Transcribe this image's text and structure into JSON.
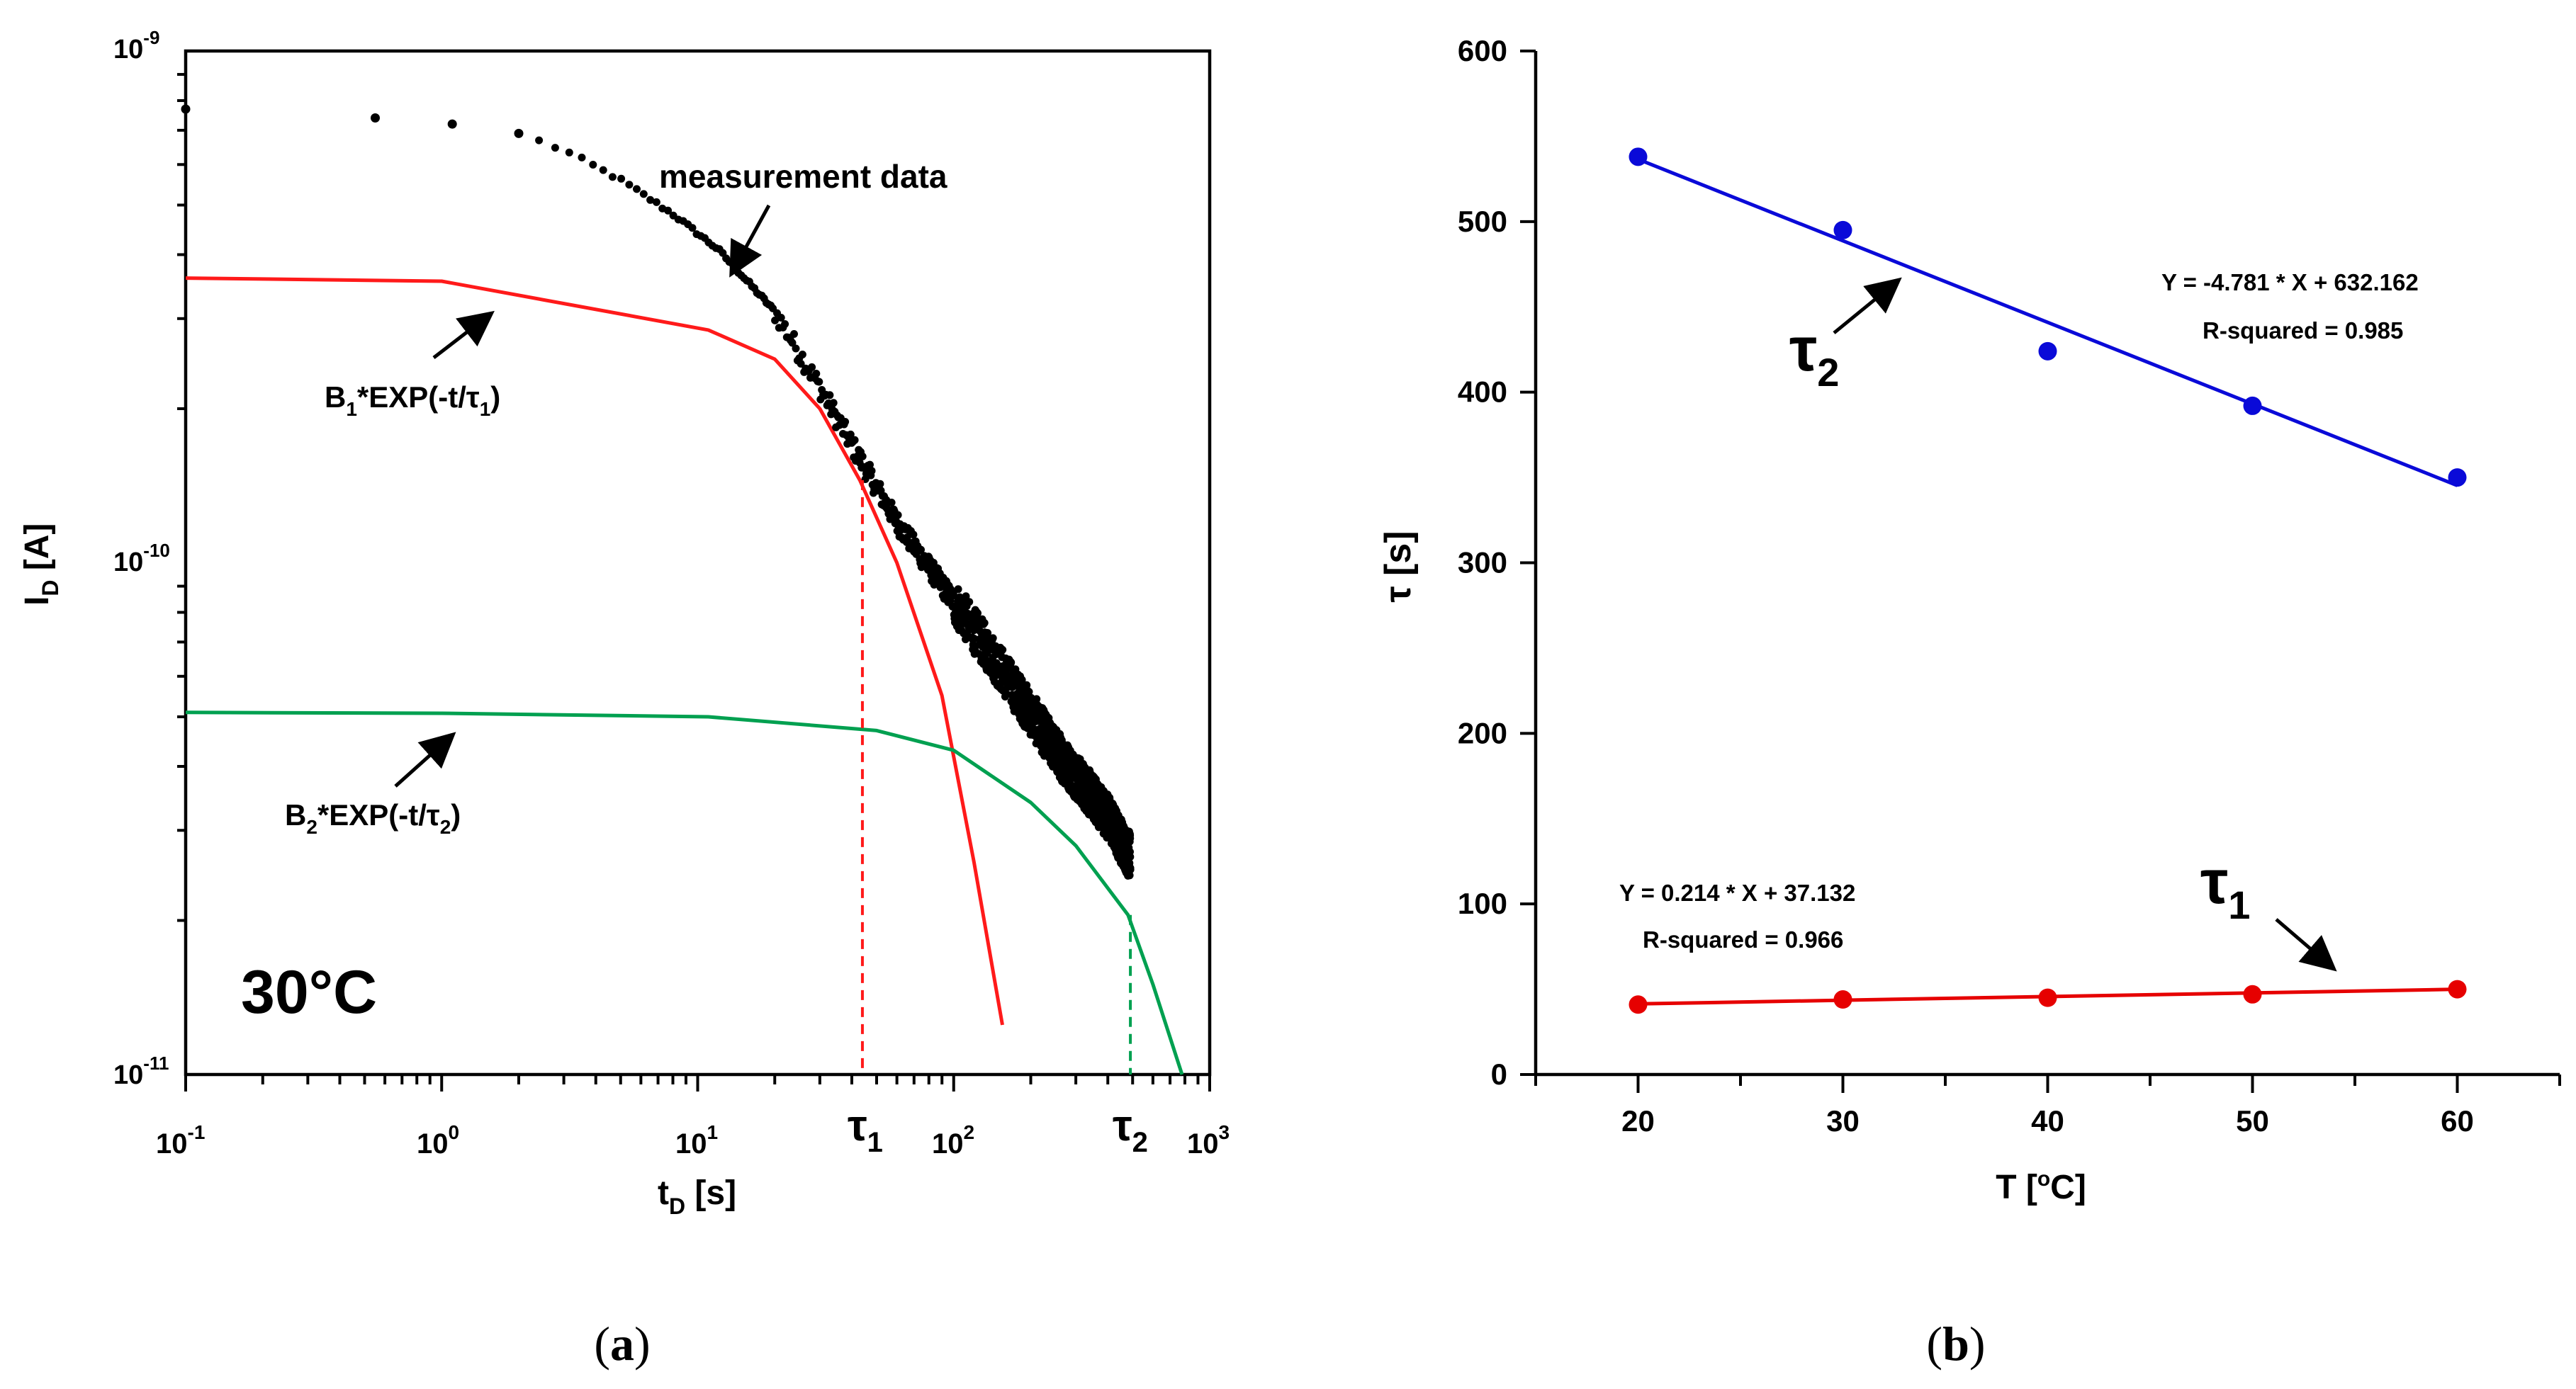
{
  "chart_data": [
    {
      "panel": "a",
      "type": "scatter",
      "panel_label": "(a)",
      "xlabel": "t",
      "xlabel_sub": "D",
      "xlabel_unit": " [s]",
      "ylabel": "I",
      "ylabel_sub": "D",
      "ylabel_unit": " [A]",
      "x_scale": "log",
      "y_scale": "log",
      "xlim": [
        0.1,
        1000
      ],
      "ylim": [
        1e-11,
        1e-09
      ],
      "x_ticks": [
        {
          "value": 0.1,
          "base": "10",
          "exp": "-1"
        },
        {
          "value": 1,
          "base": "10",
          "exp": "0"
        },
        {
          "value": 10,
          "base": "10",
          "exp": "1"
        },
        {
          "value": 100,
          "base": "10",
          "exp": "2"
        },
        {
          "value": 1000,
          "base": "10",
          "exp": "3"
        }
      ],
      "y_ticks": [
        {
          "value": 1e-11,
          "base": "10",
          "exp": "-11"
        },
        {
          "value": 1e-10,
          "base": "10",
          "exp": "-10"
        },
        {
          "value": 1e-09,
          "base": "10",
          "exp": "-9"
        }
      ],
      "temperature_label": "30°C",
      "series": [
        {
          "name": "measurement data",
          "kind": "points",
          "color": "#000000",
          "points": [
            [
              0.1,
              7.7e-10
            ],
            [
              0.55,
              7.4e-10
            ],
            [
              1.1,
              7.2e-10
            ],
            [
              2.0,
              6.9e-10
            ],
            [
              3,
              6.4e-10
            ],
            [
              5,
              5.6e-10
            ],
            [
              8,
              4.8e-10
            ],
            [
              12,
              4.1e-10
            ],
            [
              20,
              3.1e-10
            ],
            [
              30,
              2.2e-10
            ],
            [
              40,
              1.7e-10
            ],
            [
              60,
              1.2e-10
            ],
            [
              100,
              8.4e-11
            ],
            [
              150,
              6.3e-11
            ],
            [
              250,
              4.3e-11
            ],
            [
              400,
              3.2e-11
            ],
            [
              480,
              2.7e-11
            ]
          ]
        },
        {
          "name": "B1*EXP(-t/τ1) fit",
          "kind": "line",
          "color": "#ff1a1a",
          "points": [
            [
              0.1,
              3.6e-10
            ],
            [
              1.0,
              3.55e-10
            ],
            [
              11,
              2.85e-10
            ],
            [
              20,
              2.5e-10
            ],
            [
              30,
              2e-10
            ],
            [
              43,
              1.45e-10
            ],
            [
              60,
              1e-10
            ],
            [
              90,
              5.5e-11
            ],
            [
              120,
              2.6e-11
            ],
            [
              155,
              1.25e-11
            ]
          ]
        },
        {
          "name": "B2*EXP(-t/τ2) fit",
          "kind": "line",
          "color": "#00a050",
          "points": [
            [
              0.1,
              5.1e-11
            ],
            [
              1,
              5.08e-11
            ],
            [
              11,
              5e-11
            ],
            [
              50,
              4.7e-11
            ],
            [
              100,
              4.3e-11
            ],
            [
              200,
              3.4e-11
            ],
            [
              300,
              2.8e-11
            ],
            [
              480,
              2.05e-11
            ],
            [
              600,
              1.5e-11
            ],
            [
              780,
              1e-11
            ]
          ]
        }
      ],
      "markers": [
        {
          "name": "τ1",
          "x": 44,
          "color": "#ff1a1a",
          "label_base": "τ",
          "label_sub": "1"
        },
        {
          "name": "τ2",
          "x": 490,
          "color": "#00a050",
          "label_base": "τ",
          "label_sub": "2"
        }
      ],
      "annotations": {
        "measurement": "measurement data",
        "fit1_pre": "B",
        "fit1_sub": "1",
        "fit1_mid": "*EXP(-t/τ",
        "fit1_sub2": "1",
        "fit1_post": ")",
        "fit2_pre": "B",
        "fit2_sub": "2",
        "fit2_mid": "*EXP(-t/τ",
        "fit2_sub2": "2",
        "fit2_post": ")"
      }
    },
    {
      "panel": "b",
      "type": "scatter",
      "panel_label": "(b)",
      "xlabel_pre": "T [",
      "xlabel_sup": "o",
      "xlabel_post": "C]",
      "ylabel": "τ [s]",
      "xlim": [
        15,
        65
      ],
      "ylim": [
        0,
        600
      ],
      "x_ticks": [
        20,
        30,
        40,
        50,
        60
      ],
      "x_minor_ticks": [
        15,
        25,
        35,
        45,
        55,
        65
      ],
      "y_ticks": [
        0,
        100,
        200,
        300,
        400,
        500,
        600
      ],
      "series": [
        {
          "name": "τ2",
          "color": "#0a0ad8",
          "x": [
            20,
            30,
            40,
            50,
            60
          ],
          "y": [
            538,
            495,
            424,
            392,
            350
          ],
          "fit": {
            "slope": -4.781,
            "intercept": 632.162
          },
          "equation": "Y = -4.781 * X + 632.162",
          "r_squared": "R-squared = 0.985",
          "label_base": "τ",
          "label_sub": "2"
        },
        {
          "name": "τ1",
          "color": "#e60000",
          "x": [
            20,
            30,
            40,
            50,
            60
          ],
          "y": [
            41,
            44,
            45,
            47,
            50
          ],
          "fit": {
            "slope": 0.214,
            "intercept": 37.132
          },
          "equation": "Y = 0.214 * X + 37.132",
          "r_squared": "R-squared = 0.966",
          "label_base": "τ",
          "label_sub": "1"
        }
      ]
    }
  ]
}
